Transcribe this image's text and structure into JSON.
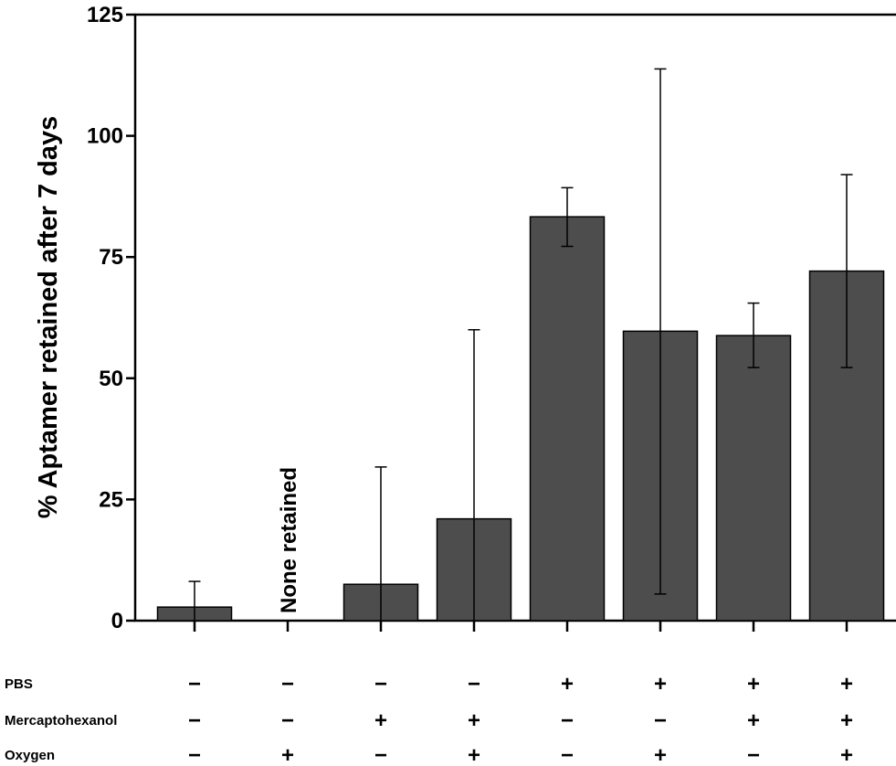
{
  "chart_data": {
    "type": "bar",
    "ylabel": "% Aptamer retained after 7 days",
    "ylim": [
      0,
      125
    ],
    "yticks": [
      0,
      25,
      50,
      75,
      100,
      125
    ],
    "values": [
      2.8,
      0,
      7.5,
      21,
      83.3,
      59.7,
      58.8,
      72.1
    ],
    "error_low": [
      0,
      0,
      0,
      0,
      77.2,
      5.5,
      52.2,
      52.2
    ],
    "error_high": [
      8.1,
      null,
      31.7,
      60.0,
      89.3,
      113.8,
      65.5,
      92.0
    ],
    "annotations": [
      {
        "bar_index": 1,
        "text": "None retained"
      }
    ],
    "conditions": [
      {
        "label": "PBS",
        "values": [
          "−",
          "−",
          "−",
          "−",
          "+",
          "+",
          "+",
          "+"
        ]
      },
      {
        "label": "Mercaptohexanol",
        "values": [
          "−",
          "−",
          "+",
          "+",
          "−",
          "−",
          "+",
          "+"
        ]
      },
      {
        "label": "Oxygen",
        "values": [
          "−",
          "+",
          "−",
          "+",
          "−",
          "+",
          "−",
          "+"
        ]
      }
    ],
    "bar_color": "#4d4d4d",
    "grid": false
  }
}
